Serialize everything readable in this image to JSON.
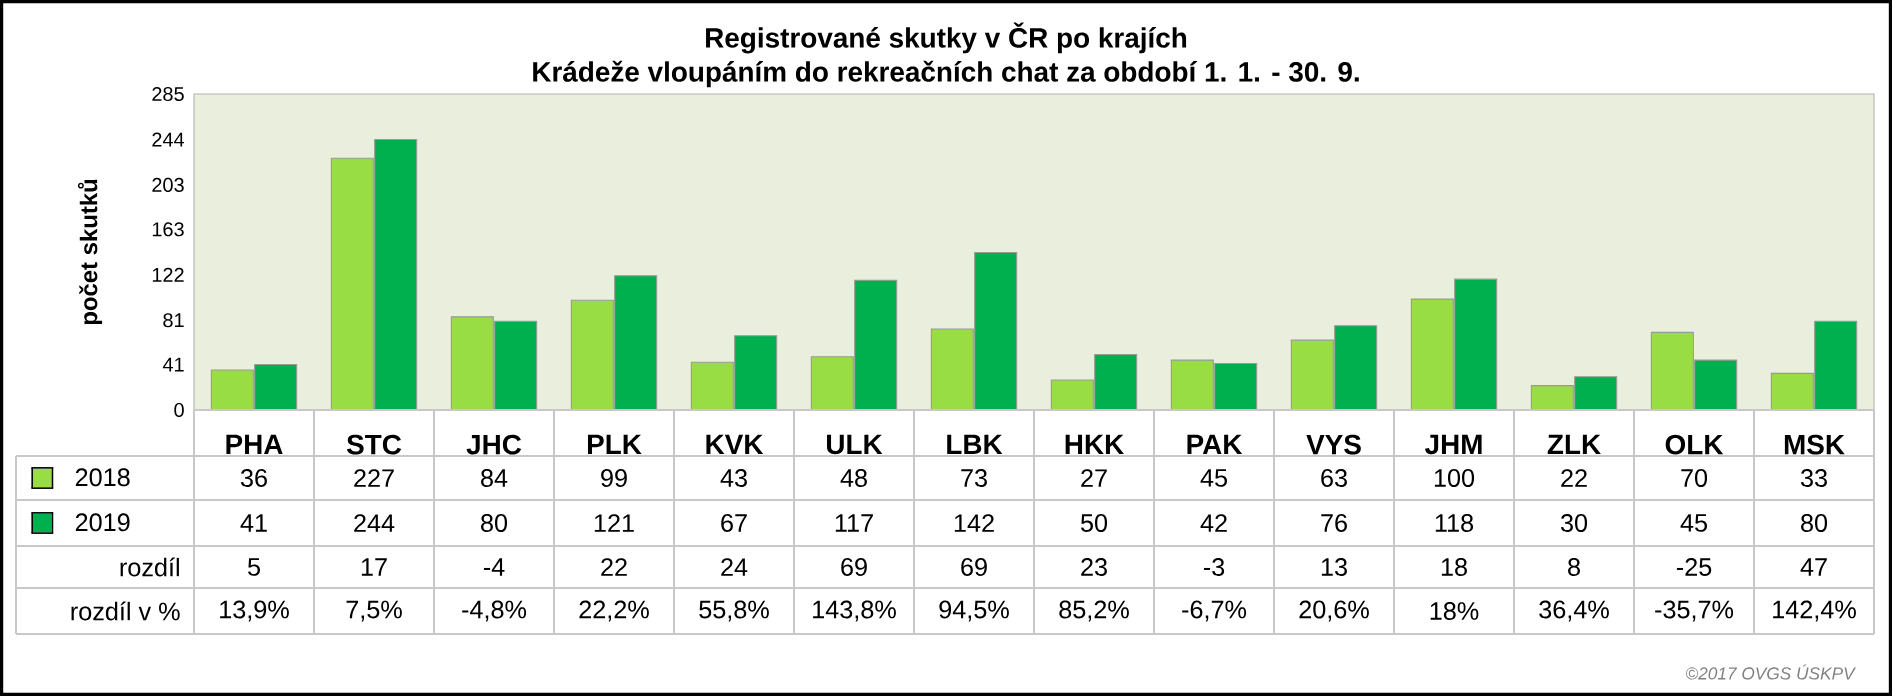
{
  "chart_data": {
    "type": "bar",
    "title": "Registrované skutky v ČR po krajích",
    "subtitle": "Krádeže vloupáním do rekreačních chat za období 1. 1. - 30. 9.",
    "ylabel": "počet skutků",
    "categories": [
      "PHA",
      "STC",
      "JHC",
      "PLK",
      "KVK",
      "ULK",
      "LBK",
      "HKK",
      "PAK",
      "VYS",
      "JHM",
      "ZLK",
      "OLK",
      "MSK"
    ],
    "series": [
      {
        "name": "2018",
        "color": "#99dd44",
        "values": [
          36,
          227,
          84,
          99,
          43,
          48,
          73,
          27,
          45,
          63,
          100,
          22,
          70,
          33
        ]
      },
      {
        "name": "2019",
        "color": "#00b04f",
        "values": [
          41,
          244,
          80,
          121,
          67,
          117,
          142,
          50,
          42,
          76,
          118,
          30,
          45,
          80
        ]
      }
    ],
    "ylim": [
      0,
      285
    ],
    "yticks": [
      0,
      41,
      81,
      122,
      163,
      203,
      244,
      285
    ],
    "data_labels": true,
    "legend": "bottom",
    "annotations": [
      "rozdíl",
      "5",
      "17",
      "-4",
      "22",
      "24",
      "69",
      "69",
      "23",
      "-3",
      "13",
      "18",
      "8",
      "-25",
      "47",
      "rozdíl v %",
      "13,9%",
      "7,5%",
      "-4,8%",
      "22,2%",
      "55,8%",
      "143,8%",
      "94,5%",
      "85,2%",
      "-6,7%",
      "20,6%",
      "18%",
      "36,4%",
      "-35,7%",
      "142,4%",
      "©2017 OVGS ÚSKPV"
    ]
  }
}
